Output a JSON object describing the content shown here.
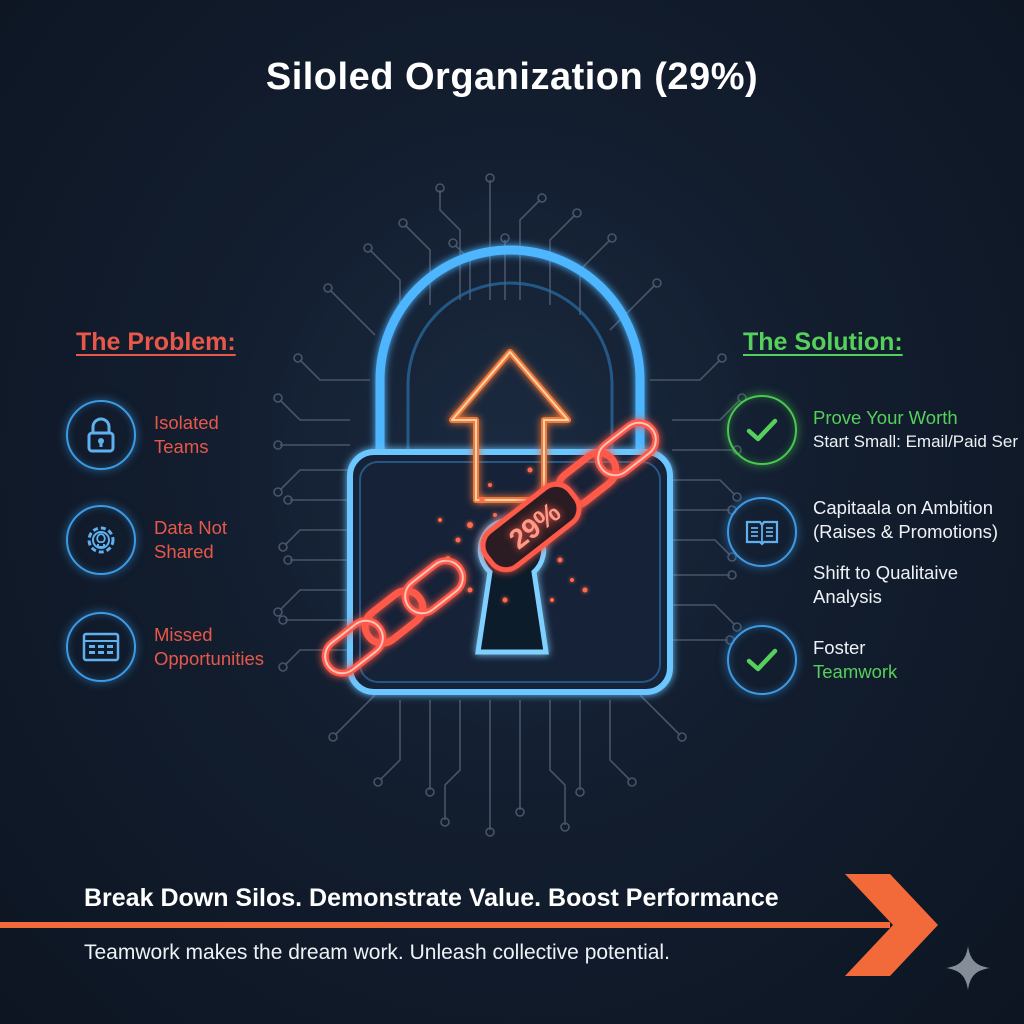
{
  "title": "Siloled Organization (29%)",
  "lock_badge": "29%",
  "problem": {
    "heading": "The Problem:",
    "items": [
      {
        "icon": "padlock-icon",
        "lines": [
          "Isolated",
          "Teams"
        ]
      },
      {
        "icon": "gear-lightbulb-icon",
        "lines": [
          "Data Not",
          "Shared"
        ]
      },
      {
        "icon": "document-grid-icon",
        "lines": [
          "Missed",
          "Opportunities"
        ]
      }
    ]
  },
  "solution": {
    "heading": "The Solution:",
    "items": [
      {
        "icon": "checkmark-icon",
        "lines": [
          "Prove Your Worth",
          "Start Small: Email/Paid Ser"
        ]
      },
      {
        "icon": "open-book-icon",
        "lines": [
          "Capitaala on Ambition",
          "(Raises & Promotions)"
        ]
      },
      {
        "icon": "",
        "lines": [
          "Shift to Qualitaive",
          "Analysis"
        ]
      },
      {
        "icon": "checkmark-icon",
        "lines": [
          "Foster",
          "Teamwork"
        ]
      }
    ]
  },
  "banner": {
    "title": "Break Down Silos. Demonstrate Value. Boost Performance",
    "subtitle": "Teamwork makes the dream work. Unleash collective potential."
  },
  "colors": {
    "background": "#121d2e",
    "problem_red": "#e8584a",
    "solution_green": "#56d05c",
    "neon_blue": "#3c9be6",
    "arrow_orange": "#f07a3a",
    "chain_red": "#ff5a4a"
  }
}
